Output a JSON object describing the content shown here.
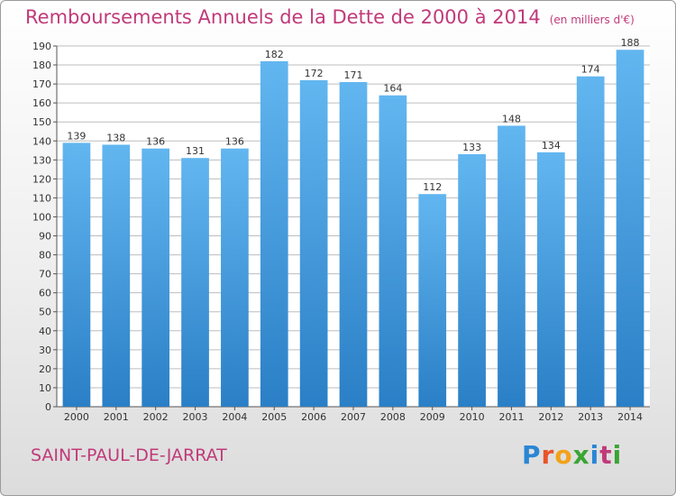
{
  "title": "Remboursements Annuels de la Dette de 2000 à 2014",
  "unit_note": "(en milliers d'€)",
  "commune": "SAINT-PAUL-DE-JARRAT",
  "logo_text": "Proxiti",
  "colors": {
    "bar_top": "#62b6f0",
    "bar_bottom": "#2a7fc6",
    "title": "#c03a7a",
    "grid": "#bdbdbd"
  },
  "chart_data": {
    "type": "bar",
    "title": "Remboursements Annuels de la Dette de 2000 à 2014",
    "subtitle": "(en milliers d'€)",
    "categories": [
      "2000",
      "2001",
      "2002",
      "2003",
      "2004",
      "2005",
      "2006",
      "2007",
      "2008",
      "2009",
      "2010",
      "2011",
      "2012",
      "2013",
      "2014"
    ],
    "values": [
      139,
      138,
      136,
      131,
      136,
      182,
      172,
      171,
      164,
      112,
      133,
      148,
      134,
      174,
      188
    ],
    "ylim": [
      0,
      190
    ],
    "ytick_step": 10,
    "grid": true,
    "data_labels": true
  }
}
